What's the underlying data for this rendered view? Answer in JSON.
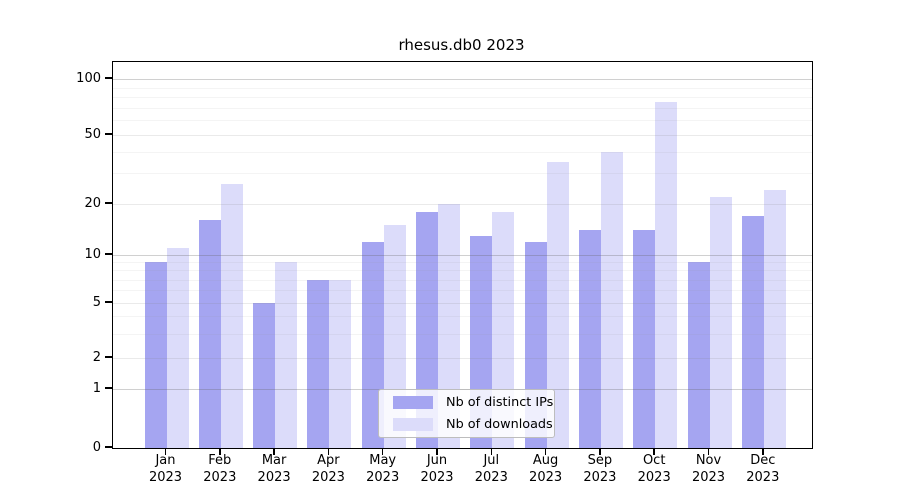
{
  "chart_data": {
    "type": "bar",
    "title": "rhesus.db0 2023",
    "xlabel": "",
    "ylabel": "",
    "yscale": "log-like (0,1,2,5,10,20,50,100)",
    "ylim": [
      0,
      120
    ],
    "grid": true,
    "legend_position": "lower center",
    "categories": [
      {
        "month": "Jan",
        "year": "2023"
      },
      {
        "month": "Feb",
        "year": "2023"
      },
      {
        "month": "Mar",
        "year": "2023"
      },
      {
        "month": "Apr",
        "year": "2023"
      },
      {
        "month": "May",
        "year": "2023"
      },
      {
        "month": "Jun",
        "year": "2023"
      },
      {
        "month": "Jul",
        "year": "2023"
      },
      {
        "month": "Aug",
        "year": "2023"
      },
      {
        "month": "Sep",
        "year": "2023"
      },
      {
        "month": "Oct",
        "year": "2023"
      },
      {
        "month": "Nov",
        "year": "2023"
      },
      {
        "month": "Dec",
        "year": "2023"
      }
    ],
    "series": [
      {
        "name": "Nb of distinct IPs",
        "color": "#a5a5f1",
        "values": [
          9,
          16,
          5,
          7,
          12,
          18,
          13,
          12,
          14,
          14,
          9,
          17
        ]
      },
      {
        "name": "Nb of downloads",
        "color": "#dcdcfa",
        "values": [
          11,
          26,
          9,
          7,
          15,
          20,
          18,
          35,
          40,
          75,
          22,
          24
        ]
      }
    ],
    "y_ticks": [
      0,
      1,
      2,
      5,
      10,
      20,
      50,
      100
    ],
    "y_minor_ticks": [
      3,
      4,
      6,
      7,
      8,
      9,
      30,
      40,
      60,
      70,
      80,
      90
    ],
    "decade_ticks": [
      1,
      10,
      100
    ]
  }
}
